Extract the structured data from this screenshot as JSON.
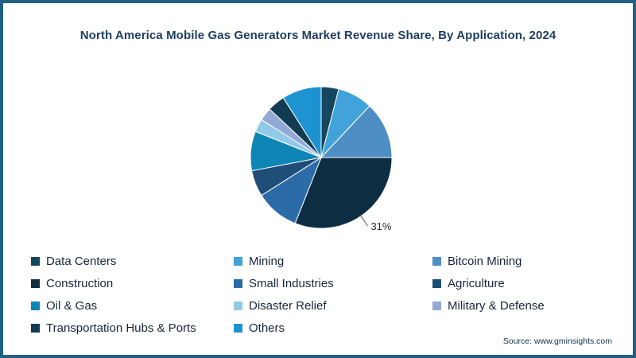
{
  "frame": {
    "border_color": "#235e84"
  },
  "title": "North America Mobile Gas Generators Market Revenue Share, By Application, 2024",
  "source": "Source: www.gminsights.com",
  "chart_data": {
    "type": "pie",
    "title": "North America Mobile Gas Generators Market Revenue Share, By Application, 2024",
    "categories": [
      "Data Centers",
      "Mining",
      "Bitcoin Mining",
      "Construction",
      "Small Industries",
      "Agriculture",
      "Oil & Gas",
      "Disaster Relief",
      "Military & Defense",
      "Transportation Hubs & Ports",
      "Others"
    ],
    "values": [
      4,
      8,
      13,
      31,
      10,
      6,
      9,
      3,
      3,
      4,
      9
    ],
    "unit": "%",
    "colors": [
      "#16465f",
      "#41a3da",
      "#4d8fc4",
      "#0d2d42",
      "#2b6ca8",
      "#1f4e79",
      "#0f85b5",
      "#92c9e8",
      "#93a9d6",
      "#123c52",
      "#1e93d2"
    ],
    "start_angle_deg": 0,
    "direction": "clockwise",
    "data_labels": [
      {
        "category": "Construction",
        "text": "31%"
      }
    ],
    "legend_position": "bottom",
    "legend_columns": 3,
    "label_color": "#2b2b2b",
    "slice_stroke": "#ffffff"
  }
}
